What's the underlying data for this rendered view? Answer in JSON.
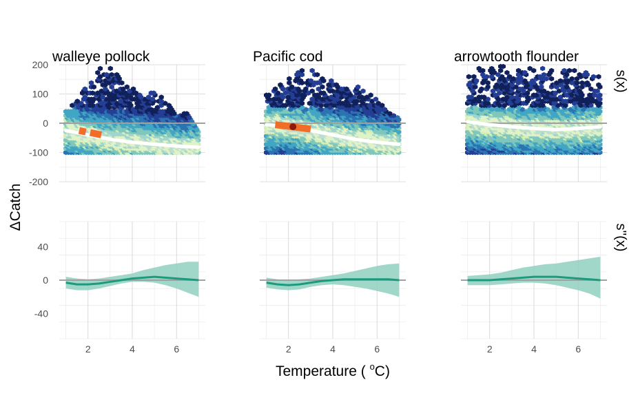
{
  "figure": {
    "xlabel_main": "Temperature ( ",
    "xlabel_sup": "o",
    "xlabel_tail": "C)",
    "ylabel": "ΔCatch",
    "row_labels": [
      "s(x)",
      "s''(x)"
    ]
  },
  "chart_data": [
    {
      "type": "scatter",
      "panel": "walleye pollock",
      "row": "s(x)",
      "title": "walleye pollock",
      "xlim": [
        0.7,
        7.3
      ],
      "ylim": [
        -200,
        200
      ],
      "x_ticks": [
        2,
        4,
        6
      ],
      "y_ticks": [
        -200,
        -100,
        0,
        100,
        200
      ],
      "grid": true,
      "reference_line": 0,
      "hexbin": {
        "x_range": [
          1.0,
          7.0
        ],
        "y_floor": -100,
        "top_by_x": [
          [
            1.0,
            40
          ],
          [
            1.5,
            90
          ],
          [
            2.0,
            130
          ],
          [
            2.5,
            190
          ],
          [
            3.0,
            200
          ],
          [
            3.5,
            150
          ],
          [
            4.0,
            120
          ],
          [
            4.5,
            100
          ],
          [
            5.0,
            110
          ],
          [
            5.5,
            80
          ],
          [
            6.0,
            20
          ],
          [
            6.5,
            40
          ],
          [
            7.0,
            -20
          ]
        ]
      },
      "smooth": [
        {
          "x": 1.0,
          "y": -25
        },
        {
          "x": 2.0,
          "y": -40
        },
        {
          "x": 3.0,
          "y": -55
        },
        {
          "x": 4.0,
          "y": -65
        },
        {
          "x": 5.0,
          "y": -72
        },
        {
          "x": 6.0,
          "y": -78
        },
        {
          "x": 7.0,
          "y": -82
        }
      ],
      "highlight_segments": [
        {
          "x_start": 1.6,
          "x_end": 1.9,
          "y_start": -25,
          "y_end": -30
        },
        {
          "x_start": 2.1,
          "x_end": 2.6,
          "y_start": -32,
          "y_end": -40
        }
      ]
    },
    {
      "type": "scatter",
      "panel": "Pacific cod",
      "row": "s(x)",
      "title": "Pacific cod",
      "xlim": [
        0.7,
        7.3
      ],
      "ylim": [
        -200,
        200
      ],
      "x_ticks": [
        2,
        4,
        6
      ],
      "y_ticks": [
        -200,
        -100,
        0,
        100,
        200
      ],
      "grid": true,
      "reference_line": 0,
      "hexbin": {
        "x_range": [
          1.0,
          7.0
        ],
        "y_floor": -100,
        "top_by_x": [
          [
            1.0,
            100
          ],
          [
            1.5,
            130
          ],
          [
            2.0,
            150
          ],
          [
            2.5,
            180
          ],
          [
            3.0,
            190
          ],
          [
            3.5,
            170
          ],
          [
            4.0,
            150
          ],
          [
            4.5,
            120
          ],
          [
            5.0,
            130
          ],
          [
            5.5,
            110
          ],
          [
            6.0,
            80
          ],
          [
            6.5,
            40
          ],
          [
            7.0,
            20
          ]
        ]
      },
      "smooth": [
        {
          "x": 1.0,
          "y": -5
        },
        {
          "x": 2.0,
          "y": -10
        },
        {
          "x": 3.0,
          "y": -25
        },
        {
          "x": 4.0,
          "y": -40
        },
        {
          "x": 5.0,
          "y": -55
        },
        {
          "x": 6.0,
          "y": -65
        },
        {
          "x": 7.0,
          "y": -72
        }
      ],
      "highlight_segments": [
        {
          "x_start": 1.4,
          "x_end": 3.0,
          "y_start": -5,
          "y_end": -20
        }
      ],
      "highlight_point": {
        "x": 2.2,
        "y": -12
      }
    },
    {
      "type": "scatter",
      "panel": "arrowtooth flounder",
      "row": "s(x)",
      "title": "arrowtooth flounder",
      "xlim": [
        0.7,
        7.3
      ],
      "ylim": [
        -200,
        200
      ],
      "x_ticks": [
        2,
        4,
        6
      ],
      "y_ticks": [
        -200,
        -100,
        0,
        100,
        200
      ],
      "grid": true,
      "reference_line": 0,
      "hexbin": {
        "x_range": [
          1.0,
          7.0
        ],
        "y_floor": -100,
        "top_by_x": [
          [
            1.0,
            170
          ],
          [
            1.5,
            190
          ],
          [
            2.0,
            200
          ],
          [
            2.5,
            200
          ],
          [
            3.0,
            200
          ],
          [
            3.5,
            200
          ],
          [
            4.0,
            200
          ],
          [
            4.5,
            200
          ],
          [
            5.0,
            170
          ],
          [
            5.5,
            190
          ],
          [
            6.0,
            200
          ],
          [
            6.5,
            180
          ],
          [
            7.0,
            170
          ]
        ]
      },
      "smooth": [
        {
          "x": 1.0,
          "y": 5
        },
        {
          "x": 2.0,
          "y": -5
        },
        {
          "x": 3.0,
          "y": -12
        },
        {
          "x": 4.0,
          "y": -18
        },
        {
          "x": 5.0,
          "y": -22
        },
        {
          "x": 6.0,
          "y": -18
        },
        {
          "x": 7.0,
          "y": -12
        }
      ]
    },
    {
      "type": "area",
      "panel": "walleye pollock",
      "row": "s''(x)",
      "xlim": [
        0.7,
        7.3
      ],
      "ylim": [
        -70,
        70
      ],
      "x_ticks": [
        2,
        4,
        6
      ],
      "y_ticks": [
        -40,
        0,
        40
      ],
      "grid": true,
      "reference_line": 0,
      "x": [
        1.0,
        1.5,
        2.0,
        2.5,
        3.0,
        3.5,
        4.0,
        4.5,
        5.0,
        5.5,
        6.0,
        6.5,
        7.0
      ],
      "mean": [
        -3,
        -5,
        -5,
        -4,
        -2,
        0,
        2,
        3,
        4,
        3,
        2,
        1,
        0
      ],
      "lower": [
        -10,
        -12,
        -12,
        -10,
        -7,
        -4,
        -2,
        -2,
        -3,
        -6,
        -10,
        -15,
        -20
      ],
      "upper": [
        4,
        2,
        1,
        2,
        4,
        6,
        8,
        12,
        15,
        18,
        20,
        22,
        22
      ]
    },
    {
      "type": "area",
      "panel": "Pacific cod",
      "row": "s''(x)",
      "xlim": [
        0.7,
        7.3
      ],
      "ylim": [
        -70,
        70
      ],
      "x_ticks": [
        2,
        4,
        6
      ],
      "y_ticks": [
        -40,
        0,
        40
      ],
      "grid": true,
      "reference_line": 0,
      "x": [
        1.0,
        1.5,
        2.0,
        2.5,
        3.0,
        3.5,
        4.0,
        4.5,
        5.0,
        5.5,
        6.0,
        6.5,
        7.0
      ],
      "mean": [
        -3,
        -5,
        -6,
        -5,
        -3,
        -1,
        0,
        1,
        1,
        1,
        1,
        1,
        0
      ],
      "lower": [
        -9,
        -11,
        -12,
        -11,
        -8,
        -6,
        -5,
        -6,
        -8,
        -10,
        -13,
        -16,
        -20
      ],
      "upper": [
        3,
        1,
        0,
        1,
        2,
        4,
        6,
        8,
        11,
        14,
        17,
        19,
        20
      ]
    },
    {
      "type": "area",
      "panel": "arrowtooth flounder",
      "row": "s''(x)",
      "xlim": [
        0.7,
        7.3
      ],
      "ylim": [
        -70,
        70
      ],
      "x_ticks": [
        2,
        4,
        6
      ],
      "y_ticks": [
        -40,
        0,
        40
      ],
      "grid": true,
      "reference_line": 0,
      "x": [
        1.0,
        1.5,
        2.0,
        2.5,
        3.0,
        3.5,
        4.0,
        4.5,
        5.0,
        5.5,
        6.0,
        6.5,
        7.0
      ],
      "mean": [
        0,
        0,
        0,
        1,
        2,
        3,
        4,
        4,
        4,
        3,
        2,
        1,
        0
      ],
      "lower": [
        -6,
        -6,
        -6,
        -5,
        -4,
        -3,
        -3,
        -4,
        -6,
        -9,
        -12,
        -16,
        -22
      ],
      "upper": [
        5,
        6,
        7,
        9,
        12,
        15,
        17,
        19,
        20,
        22,
        24,
        26,
        28
      ]
    }
  ]
}
